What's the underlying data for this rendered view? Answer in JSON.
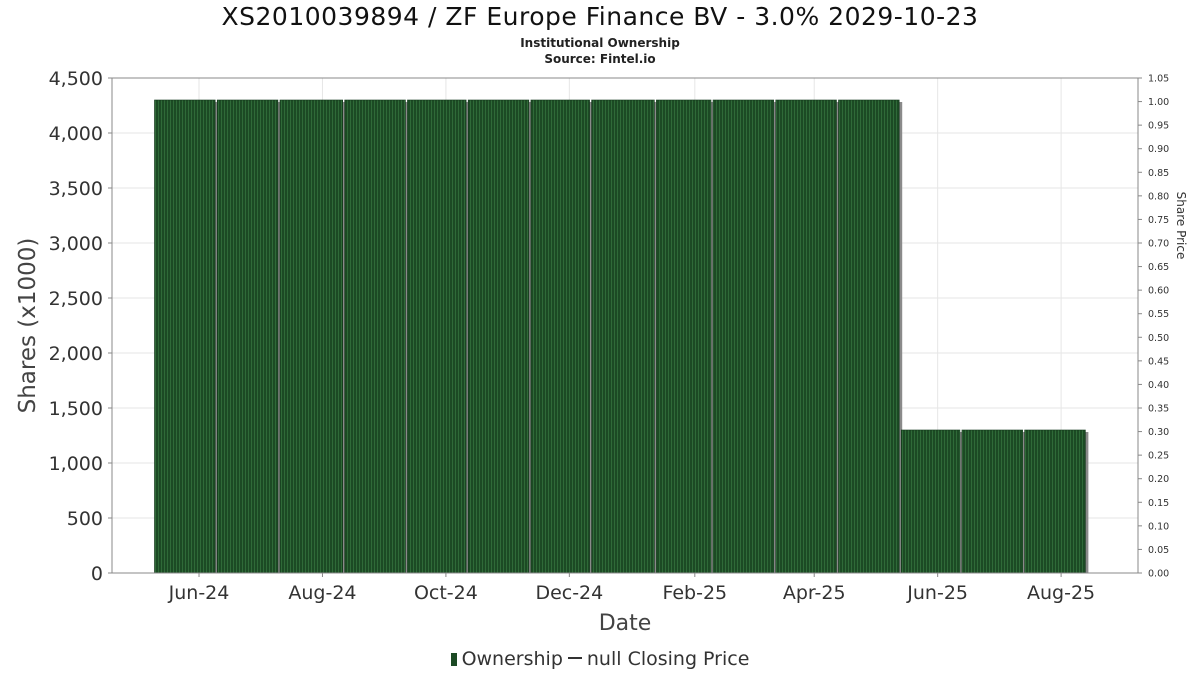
{
  "title": "XS2010039894 / ZF Europe Finance BV - 3.0% 2029-10-23",
  "subtitle": "Institutional Ownership",
  "source": "Source: Fintel.io",
  "legend": {
    "ownership_label": "Ownership",
    "price_label": "null Closing Price"
  },
  "colors": {
    "bar": "#1c4a24",
    "bar_shadow": "#8a8a8a",
    "grid": "#e6e6e6",
    "axis": "#888888"
  },
  "chart_data": {
    "type": "bar",
    "title": "XS2010039894 / ZF Europe Finance BV - 3.0% 2029-10-23",
    "subtitle": "Institutional Ownership",
    "xlabel": "Date",
    "ylabel": "Shares (x1000)",
    "y2label": "Share Price",
    "x_tick_labels": [
      "Jun-24",
      "Aug-24",
      "Oct-24",
      "Dec-24",
      "Feb-25",
      "Apr-25",
      "Jun-25",
      "Aug-25"
    ],
    "x_tick_dates": [
      "2024-06-01",
      "2024-08-01",
      "2024-10-01",
      "2024-12-01",
      "2025-02-01",
      "2025-04-01",
      "2025-06-01",
      "2025-08-01"
    ],
    "x_range": [
      "2024-04-19",
      "2025-09-08"
    ],
    "ylim": [
      0,
      4500
    ],
    "y_ticks": [
      0,
      500,
      1000,
      1500,
      2000,
      2500,
      3000,
      3500,
      4000,
      4500
    ],
    "y_tick_labels": [
      "0",
      "500",
      "1,000",
      "1,500",
      "2,000",
      "2,500",
      "3,000",
      "3,500",
      "4,000",
      "4,500"
    ],
    "y2lim": [
      0,
      1.05
    ],
    "y2_ticks": [
      0,
      0.05,
      0.1,
      0.15,
      0.2,
      0.25,
      0.3,
      0.35,
      0.4,
      0.45,
      0.5,
      0.55,
      0.6,
      0.65,
      0.7,
      0.75,
      0.8,
      0.85,
      0.9,
      0.95,
      1.0,
      1.05
    ],
    "y2_tick_labels": [
      "0.00",
      "0.05",
      "0.10",
      "0.15",
      "0.20",
      "0.25",
      "0.30",
      "0.35",
      "0.40",
      "0.45",
      "0.50",
      "0.55",
      "0.60",
      "0.65",
      "0.70",
      "0.75",
      "0.80",
      "0.85",
      "0.90",
      "0.95",
      "1.00",
      "1.05"
    ],
    "grid": true,
    "legend_position": "bottom-center",
    "series": [
      {
        "name": "Ownership",
        "bars": [
          {
            "start": "2024-05-10",
            "end": "2024-06-09",
            "value": 4300
          },
          {
            "start": "2024-06-10",
            "end": "2024-07-10",
            "value": 4300
          },
          {
            "start": "2024-07-11",
            "end": "2024-08-11",
            "value": 4300
          },
          {
            "start": "2024-08-12",
            "end": "2024-09-11",
            "value": 4300
          },
          {
            "start": "2024-09-12",
            "end": "2024-10-11",
            "value": 4300
          },
          {
            "start": "2024-10-12",
            "end": "2024-11-11",
            "value": 4300
          },
          {
            "start": "2024-11-12",
            "end": "2024-12-11",
            "value": 4300
          },
          {
            "start": "2024-12-12",
            "end": "2025-01-12",
            "value": 4300
          },
          {
            "start": "2025-01-13",
            "end": "2025-02-09",
            "value": 4300
          },
          {
            "start": "2025-02-10",
            "end": "2025-03-12",
            "value": 4300
          },
          {
            "start": "2025-03-13",
            "end": "2025-04-12",
            "value": 4300
          },
          {
            "start": "2025-04-13",
            "end": "2025-05-13",
            "value": 4300
          },
          {
            "start": "2025-05-14",
            "end": "2025-06-12",
            "value": 1300
          },
          {
            "start": "2025-06-13",
            "end": "2025-07-13",
            "value": 1300
          },
          {
            "start": "2025-07-14",
            "end": "2025-08-13",
            "value": 1300
          }
        ]
      },
      {
        "name": "null Closing Price",
        "values": []
      }
    ]
  }
}
